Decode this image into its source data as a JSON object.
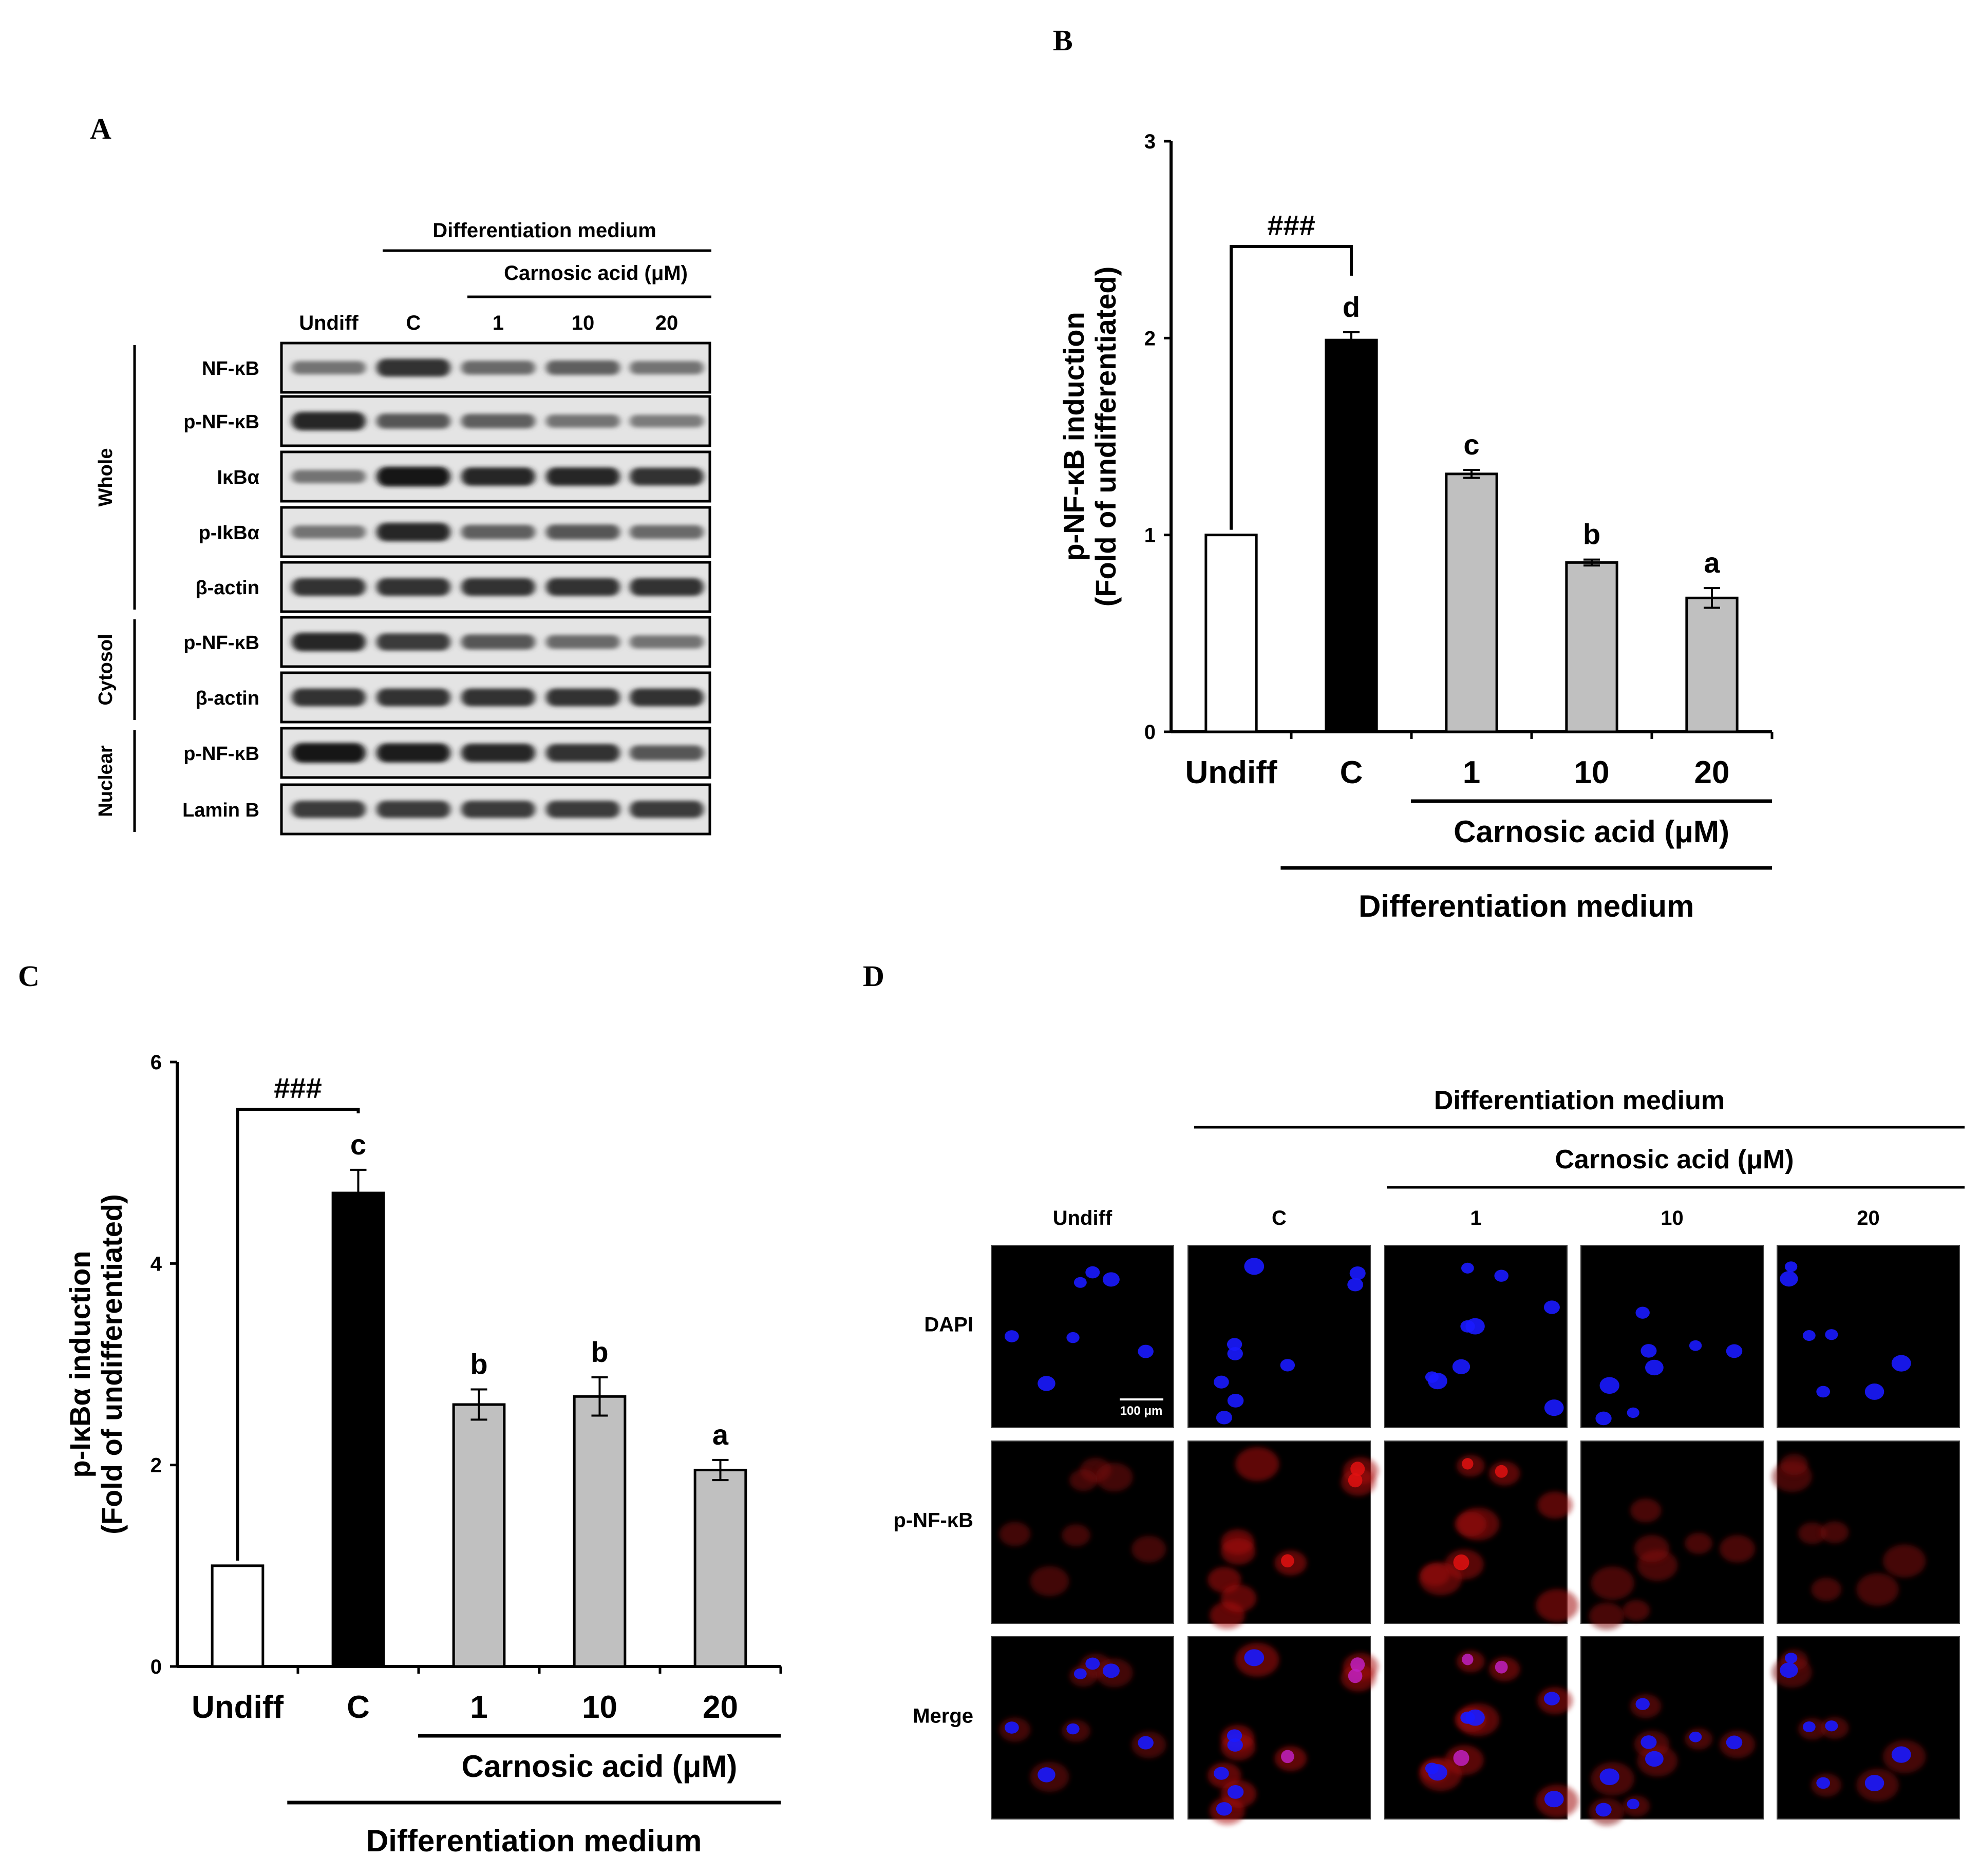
{
  "panels": {
    "A": {
      "letter": "A",
      "header_top": "Differentiation medium",
      "header_sub": "Carnosic acid (μM)",
      "lanes": [
        "Undiff",
        "C",
        "1",
        "10",
        "20"
      ],
      "groups": [
        {
          "name": "Whole",
          "rows": [
            "NF-κB",
            "p-NF-κB",
            "IκBα",
            "p-IkBα",
            "β-actin"
          ]
        },
        {
          "name": "Cytosol",
          "rows": [
            "p-NF-κB",
            "β-actin"
          ]
        },
        {
          "name": "Nuclear",
          "rows": [
            "p-NF-κB",
            "Lamin B"
          ]
        }
      ],
      "band_intensity": [
        [
          0.45,
          0.8,
          0.5,
          0.55,
          0.45
        ],
        [
          0.85,
          0.6,
          0.55,
          0.45,
          0.4
        ],
        [
          0.45,
          0.95,
          0.85,
          0.85,
          0.8
        ],
        [
          0.45,
          0.85,
          0.55,
          0.6,
          0.5
        ],
        [
          0.8,
          0.8,
          0.8,
          0.8,
          0.8
        ],
        [
          0.85,
          0.75,
          0.6,
          0.5,
          0.45
        ],
        [
          0.8,
          0.8,
          0.8,
          0.8,
          0.8
        ],
        [
          0.95,
          0.9,
          0.85,
          0.8,
          0.6
        ],
        [
          0.75,
          0.75,
          0.75,
          0.75,
          0.75
        ]
      ]
    },
    "B": {
      "letter": "B",
      "significance": "###",
      "x_under_label": "Carnosic acid (μM)",
      "x_under_label2": "Differentiation medium"
    },
    "C": {
      "letter": "C",
      "significance": "###",
      "x_under_label": "Carnosic acid (μM)",
      "x_under_label2": "Differentiation medium"
    },
    "D": {
      "letter": "D",
      "header_top": "Differentiation medium",
      "header_sub": "Carnosic acid (μM)",
      "columns": [
        "Undiff",
        "C",
        "1",
        "10",
        "20"
      ],
      "rows": [
        "DAPI",
        "p-NF-κB",
        "Merge"
      ],
      "scale_bar": "100 μm"
    }
  },
  "chart_data": [
    {
      "type": "bar",
      "panel": "B",
      "categories": [
        "Undiff",
        "C",
        "1",
        "10",
        "20"
      ],
      "values": [
        1.0,
        1.99,
        1.31,
        0.86,
        0.68
      ],
      "errors": [
        0,
        0.04,
        0.02,
        0.015,
        0.05
      ],
      "letters": [
        "",
        "d",
        "c",
        "b",
        "a"
      ],
      "bar_colors": [
        "#ffffff",
        "#000000",
        "#c0c0c0",
        "#c0c0c0",
        "#c0c0c0"
      ],
      "ylabel_line1": "p-NF-κB induction",
      "ylabel_line2": "(Fold of undifferentiated)",
      "ylim": [
        0,
        3
      ],
      "yticks": [
        0,
        1,
        2,
        3
      ]
    },
    {
      "type": "bar",
      "panel": "C",
      "categories": [
        "Undiff",
        "C",
        "1",
        "10",
        "20"
      ],
      "values": [
        1.0,
        4.7,
        2.6,
        2.68,
        1.95
      ],
      "errors": [
        0,
        0.23,
        0.15,
        0.19,
        0.1
      ],
      "letters": [
        "",
        "c",
        "b",
        "b",
        "a"
      ],
      "bar_colors": [
        "#ffffff",
        "#000000",
        "#c0c0c0",
        "#c0c0c0",
        "#c0c0c0"
      ],
      "ylabel_line1": "p-IκBα induction",
      "ylabel_line2": "(Fold of undifferentiated)",
      "ylim": [
        0,
        6
      ],
      "yticks": [
        0,
        2,
        4,
        6
      ]
    }
  ]
}
